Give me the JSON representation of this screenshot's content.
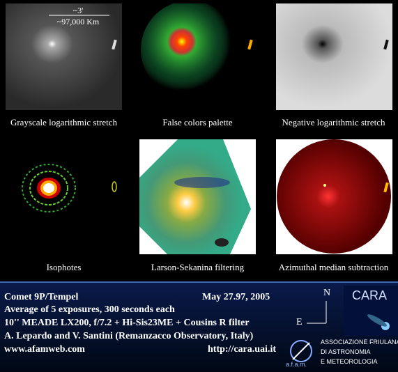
{
  "scale": {
    "angle": "~3'",
    "distance": "~97,000 Km"
  },
  "panels": [
    {
      "caption": "Grayscale logarithmic stretch"
    },
    {
      "caption": "False colors palette"
    },
    {
      "caption": "Negative logarithmic stretch"
    },
    {
      "caption": "Isophotes"
    },
    {
      "caption": "Larson-Sekanina filtering"
    },
    {
      "caption": "Azimuthal median subtraction"
    }
  ],
  "info": {
    "object": "Comet 9P/Tempel",
    "date": "May 27.97, 2005",
    "lines": [
      "Average of 5 exposures, 300 seconds each",
      "10'' MEADE LX200, f/7.2 + Hi-Sis23ME + Cousins R filter",
      "A. Lepardo and V. Santini (Remanzacco Observatory, Italy)"
    ],
    "website": "www.afamweb.com",
    "url": "http://cara.uai.it"
  },
  "compass": {
    "north": "N",
    "east": "E"
  },
  "logos": {
    "cara": "CARA",
    "afam": "a.f.a.m.",
    "association": [
      "ASSOCIAZIONE FRIULANA",
      "DI ASTRONOMIA",
      "E METEOROLOGIA"
    ]
  }
}
